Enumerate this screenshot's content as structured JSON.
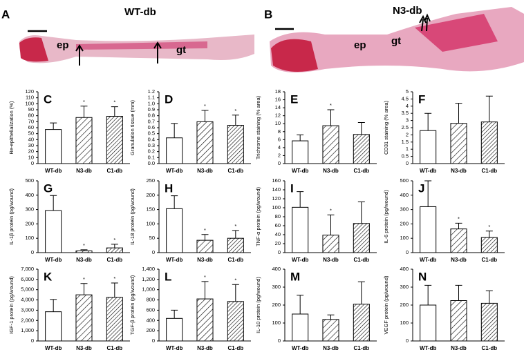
{
  "images": [
    {
      "panel": "A",
      "title": "WT-db",
      "labels": [
        "ep",
        "gt"
      ]
    },
    {
      "panel": "B",
      "title": "N3-db",
      "labels": [
        "ep",
        "gt"
      ]
    }
  ],
  "chart_data": [
    {
      "type": "bar",
      "panel": "C",
      "y_label": "Re-epithelialization (%)",
      "categories": [
        "WT-db",
        "N3-db",
        "C1-db"
      ],
      "values": [
        57,
        77,
        79
      ],
      "errors": [
        11,
        19,
        16
      ],
      "significance": [
        null,
        "*",
        "*"
      ],
      "fills": [
        "white",
        "hatch",
        "hatch-dense"
      ],
      "ylim": [
        0,
        120
      ],
      "yticks": [
        0,
        10,
        20,
        30,
        40,
        50,
        60,
        70,
        80,
        90,
        100,
        110,
        120
      ]
    },
    {
      "type": "bar",
      "panel": "D",
      "y_label": "Granulation tissue (mm)",
      "categories": [
        "WT-db",
        "N3-db",
        "C1-db"
      ],
      "values": [
        0.43,
        0.7,
        0.64
      ],
      "errors": [
        0.24,
        0.19,
        0.17
      ],
      "significance": [
        null,
        "*",
        "*"
      ],
      "fills": [
        "white",
        "hatch",
        "hatch-dense"
      ],
      "ylim": [
        0,
        1.2
      ],
      "yticks": [
        {
          "value": 0,
          "label": "0.0"
        },
        0.1,
        0.2,
        0.3,
        0.4,
        0.5,
        0.6,
        0.7,
        0.8,
        0.9,
        {
          "value": 1,
          "label": "1.0"
        },
        1.1,
        1.2
      ]
    },
    {
      "type": "bar",
      "panel": "E",
      "y_label": "Trichrome staining (% area)",
      "categories": [
        "WT-db",
        "N3-db",
        "C1-db"
      ],
      "values": [
        5.7,
        9.5,
        7.3
      ],
      "errors": [
        1.5,
        4,
        3
      ],
      "significance": [
        null,
        "*",
        null
      ],
      "fills": [
        "white",
        "hatch",
        "hatch-dense"
      ],
      "ylim": [
        0,
        18
      ],
      "yticks": [
        0,
        2,
        4,
        6,
        8,
        10,
        12,
        14,
        16,
        18
      ]
    },
    {
      "type": "bar",
      "panel": "F",
      "y_label": "CD31 staining (% area)",
      "categories": [
        "WT-db",
        "N3-db",
        "C1-db"
      ],
      "values": [
        2.3,
        2.8,
        2.9
      ],
      "errors": [
        1.2,
        1.4,
        1.8
      ],
      "significance": [
        null,
        null,
        null
      ],
      "fills": [
        "white",
        "hatch",
        "hatch-dense"
      ],
      "ylim": [
        0,
        5
      ],
      "yticks": [
        0,
        0.5,
        1,
        1.5,
        2,
        2.5,
        3,
        3.5,
        4,
        4.5,
        5
      ]
    },
    {
      "type": "bar",
      "panel": "G",
      "y_label": "IL-1β protein (pg/wound)",
      "categories": [
        "WT-db",
        "N3-db",
        "C1-db"
      ],
      "values": [
        293,
        12,
        33
      ],
      "errors": [
        105,
        8,
        25
      ],
      "significance": [
        null,
        "*",
        "*"
      ],
      "fills": [
        "white",
        "hatch",
        "hatch-dense"
      ],
      "ylim": [
        0,
        500
      ],
      "yticks": [
        0,
        100,
        200,
        300,
        400,
        500
      ]
    },
    {
      "type": "bar",
      "panel": "H",
      "y_label": "IL-18 protein (pg/wound)",
      "categories": [
        "WT-db",
        "N3-db",
        "C1-db"
      ],
      "values": [
        153,
        43,
        50
      ],
      "errors": [
        45,
        20,
        27
      ],
      "significance": [
        null,
        "*",
        "*"
      ],
      "fills": [
        "white",
        "hatch",
        "hatch-dense"
      ],
      "ylim": [
        0,
        250
      ],
      "yticks": [
        0,
        50,
        100,
        150,
        200,
        250
      ]
    },
    {
      "type": "bar",
      "panel": "I",
      "y_label": "TNF-α protein (pg/wound)",
      "categories": [
        "WT-db",
        "N3-db",
        "C1-db"
      ],
      "values": [
        101,
        39,
        65
      ],
      "errors": [
        35,
        45,
        48
      ],
      "significance": [
        null,
        "*",
        null
      ],
      "fills": [
        "white",
        "hatch",
        "hatch-dense"
      ],
      "ylim": [
        0,
        160
      ],
      "yticks": [
        0,
        20,
        40,
        60,
        80,
        100,
        120,
        140,
        160
      ]
    },
    {
      "type": "bar",
      "panel": "J",
      "y_label": "IL-6 protein (pg/wound)",
      "categories": [
        "WT-db",
        "N3-db",
        "C1-db"
      ],
      "values": [
        320,
        165,
        105
      ],
      "errors": [
        180,
        40,
        45
      ],
      "significance": [
        null,
        "*",
        "*"
      ],
      "fills": [
        "white",
        "hatch",
        "hatch-dense"
      ],
      "ylim": [
        0,
        500
      ],
      "yticks": [
        0,
        100,
        200,
        300,
        400,
        500
      ]
    },
    {
      "type": "bar",
      "panel": "K",
      "y_label": "IGF-1 protein (pg/wound)",
      "categories": [
        "WT-db",
        "N3-db",
        "C1-db"
      ],
      "values": [
        2850,
        4500,
        4250
      ],
      "errors": [
        1200,
        1100,
        1400
      ],
      "significance": [
        null,
        "*",
        "*"
      ],
      "fills": [
        "white",
        "hatch",
        "hatch-dense"
      ],
      "ylim": [
        0,
        7000
      ],
      "yticks": [
        0,
        {
          "value": 1000,
          "label": "1,000"
        },
        {
          "value": 2000,
          "label": "2,000"
        },
        {
          "value": 3000,
          "label": "3,000"
        },
        {
          "value": 4000,
          "label": "4,000"
        },
        {
          "value": 5000,
          "label": "5,000"
        },
        {
          "value": 6000,
          "label": "6,000"
        },
        {
          "value": 7000,
          "label": "7,000"
        }
      ]
    },
    {
      "type": "bar",
      "panel": "L",
      "y_label": "TGF-β protein (pg/wound)",
      "categories": [
        "WT-db",
        "N3-db",
        "C1-db"
      ],
      "values": [
        440,
        820,
        770
      ],
      "errors": [
        160,
        340,
        330
      ],
      "significance": [
        null,
        "*",
        "*"
      ],
      "fills": [
        "white",
        "hatch",
        "hatch-dense"
      ],
      "ylim": [
        0,
        1400
      ],
      "yticks": [
        0,
        200,
        400,
        600,
        800,
        {
          "value": 1000,
          "label": "1,000"
        },
        {
          "value": 1200,
          "label": "1,200"
        },
        {
          "value": 1400,
          "label": "1,400"
        }
      ]
    },
    {
      "type": "bar",
      "panel": "M",
      "y_label": "IL-10 protein (pg/wound)",
      "categories": [
        "WT-db",
        "N3-db",
        "C1-db"
      ],
      "values": [
        150,
        120,
        205
      ],
      "errors": [
        105,
        25,
        125
      ],
      "significance": [
        null,
        null,
        null
      ],
      "fills": [
        "white",
        "hatch",
        "hatch-dense"
      ],
      "ylim": [
        0,
        400
      ],
      "yticks": [
        0,
        100,
        200,
        300,
        400
      ]
    },
    {
      "type": "bar",
      "panel": "N",
      "y_label": "VEGF protein (pg/wound)",
      "categories": [
        "WT-db",
        "N3-db",
        "C1-db"
      ],
      "values": [
        200,
        225,
        210
      ],
      "errors": [
        110,
        85,
        70
      ],
      "significance": [
        null,
        null,
        null
      ],
      "fills": [
        "white",
        "hatch",
        "hatch-dense"
      ],
      "ylim": [
        0,
        400
      ],
      "yticks": [
        0,
        100,
        200,
        300,
        400
      ]
    }
  ]
}
